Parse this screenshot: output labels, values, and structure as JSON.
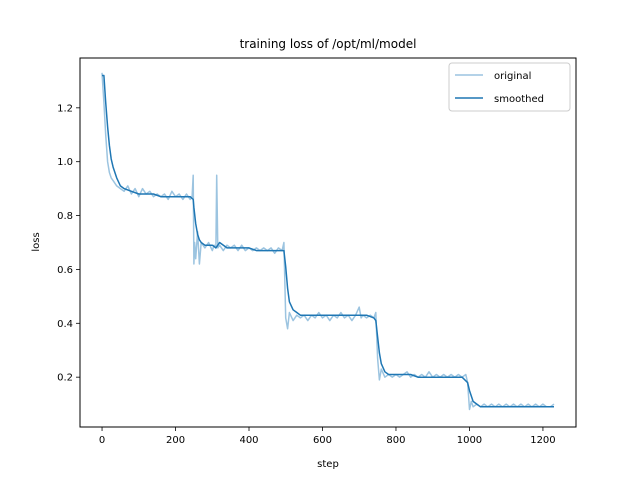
{
  "chart_data": {
    "type": "line",
    "title": "training loss of /opt/ml/model",
    "xlabel": "step",
    "ylabel": "loss",
    "xlim": [
      -60,
      1290
    ],
    "ylim": [
      0.015,
      1.385
    ],
    "xticks": [
      0,
      200,
      400,
      600,
      800,
      1000,
      1200
    ],
    "yticks": [
      0.2,
      0.4,
      0.6,
      0.8,
      1.0,
      1.2
    ],
    "ytick_labels": [
      "0.2",
      "0.4",
      "0.6",
      "0.8",
      "1.0",
      "1.2"
    ],
    "grid": false,
    "legend_position": "top-right",
    "series": [
      {
        "name": "original",
        "color": "#9cc4e0",
        "x": [
          0,
          5,
          10,
          15,
          20,
          25,
          30,
          40,
          50,
          60,
          70,
          80,
          90,
          100,
          110,
          120,
          130,
          140,
          150,
          160,
          170,
          180,
          190,
          200,
          210,
          220,
          230,
          240,
          245,
          248,
          250,
          252,
          255,
          260,
          265,
          270,
          280,
          290,
          300,
          305,
          310,
          312,
          315,
          320,
          330,
          340,
          350,
          360,
          370,
          380,
          390,
          400,
          410,
          420,
          430,
          440,
          450,
          460,
          470,
          480,
          490,
          495,
          500,
          505,
          510,
          520,
          530,
          540,
          550,
          560,
          570,
          580,
          590,
          600,
          610,
          620,
          630,
          640,
          650,
          660,
          670,
          680,
          690,
          700,
          705,
          710,
          720,
          730,
          740,
          745,
          750,
          755,
          760,
          770,
          780,
          790,
          800,
          810,
          820,
          830,
          840,
          850,
          860,
          870,
          880,
          890,
          900,
          910,
          920,
          930,
          940,
          950,
          960,
          970,
          980,
          990,
          995,
          1000,
          1005,
          1010,
          1020,
          1030,
          1040,
          1050,
          1060,
          1070,
          1080,
          1090,
          1100,
          1110,
          1120,
          1130,
          1140,
          1150,
          1160,
          1170,
          1180,
          1190,
          1200,
          1210,
          1220,
          1230
        ],
        "values": [
          1.33,
          1.22,
          1.1,
          1.0,
          0.96,
          0.94,
          0.93,
          0.91,
          0.9,
          0.89,
          0.91,
          0.88,
          0.9,
          0.87,
          0.9,
          0.88,
          0.89,
          0.87,
          0.88,
          0.87,
          0.88,
          0.86,
          0.89,
          0.87,
          0.88,
          0.86,
          0.88,
          0.86,
          0.87,
          0.95,
          0.62,
          0.7,
          0.64,
          0.74,
          0.62,
          0.7,
          0.68,
          0.7,
          0.67,
          0.69,
          0.68,
          0.95,
          0.68,
          0.69,
          0.67,
          0.69,
          0.68,
          0.69,
          0.67,
          0.69,
          0.67,
          0.68,
          0.67,
          0.68,
          0.67,
          0.68,
          0.67,
          0.68,
          0.66,
          0.68,
          0.67,
          0.7,
          0.42,
          0.38,
          0.44,
          0.41,
          0.43,
          0.42,
          0.43,
          0.41,
          0.43,
          0.42,
          0.44,
          0.42,
          0.43,
          0.41,
          0.43,
          0.42,
          0.44,
          0.42,
          0.43,
          0.41,
          0.43,
          0.46,
          0.42,
          0.43,
          0.42,
          0.43,
          0.42,
          0.44,
          0.27,
          0.19,
          0.23,
          0.2,
          0.21,
          0.2,
          0.21,
          0.2,
          0.21,
          0.22,
          0.2,
          0.21,
          0.2,
          0.21,
          0.2,
          0.22,
          0.2,
          0.21,
          0.2,
          0.21,
          0.2,
          0.21,
          0.2,
          0.21,
          0.2,
          0.21,
          0.18,
          0.08,
          0.11,
          0.09,
          0.1,
          0.09,
          0.1,
          0.09,
          0.1,
          0.09,
          0.1,
          0.09,
          0.1,
          0.09,
          0.1,
          0.09,
          0.1,
          0.09,
          0.1,
          0.09,
          0.1,
          0.09,
          0.1,
          0.09,
          0.09,
          0.1
        ]
      },
      {
        "name": "smoothed",
        "color": "#1f77b4",
        "x": [
          0,
          5,
          10,
          15,
          20,
          25,
          30,
          40,
          50,
          60,
          80,
          100,
          120,
          140,
          160,
          180,
          200,
          220,
          240,
          248,
          250,
          255,
          260,
          265,
          270,
          280,
          290,
          300,
          310,
          320,
          340,
          360,
          380,
          400,
          420,
          440,
          460,
          480,
          495,
          500,
          505,
          510,
          520,
          530,
          540,
          560,
          580,
          600,
          620,
          640,
          660,
          680,
          700,
          720,
          740,
          745,
          750,
          755,
          760,
          770,
          780,
          800,
          820,
          840,
          860,
          880,
          900,
          920,
          940,
          960,
          980,
          995,
          1000,
          1005,
          1010,
          1020,
          1030,
          1040,
          1060,
          1080,
          1100,
          1120,
          1140,
          1160,
          1180,
          1200,
          1220,
          1230
        ],
        "values": [
          1.32,
          1.32,
          1.22,
          1.13,
          1.06,
          1.01,
          0.98,
          0.94,
          0.91,
          0.9,
          0.89,
          0.88,
          0.88,
          0.88,
          0.87,
          0.87,
          0.87,
          0.87,
          0.87,
          0.86,
          0.83,
          0.77,
          0.73,
          0.71,
          0.7,
          0.69,
          0.69,
          0.69,
          0.68,
          0.7,
          0.68,
          0.68,
          0.68,
          0.68,
          0.67,
          0.67,
          0.67,
          0.67,
          0.67,
          0.61,
          0.53,
          0.48,
          0.45,
          0.44,
          0.43,
          0.43,
          0.43,
          0.43,
          0.43,
          0.43,
          0.43,
          0.43,
          0.43,
          0.43,
          0.42,
          0.41,
          0.35,
          0.29,
          0.25,
          0.22,
          0.21,
          0.21,
          0.21,
          0.21,
          0.2,
          0.2,
          0.2,
          0.2,
          0.2,
          0.2,
          0.2,
          0.18,
          0.15,
          0.13,
          0.11,
          0.1,
          0.09,
          0.09,
          0.09,
          0.09,
          0.09,
          0.09,
          0.09,
          0.09,
          0.09,
          0.09,
          0.09,
          0.09
        ]
      }
    ]
  }
}
